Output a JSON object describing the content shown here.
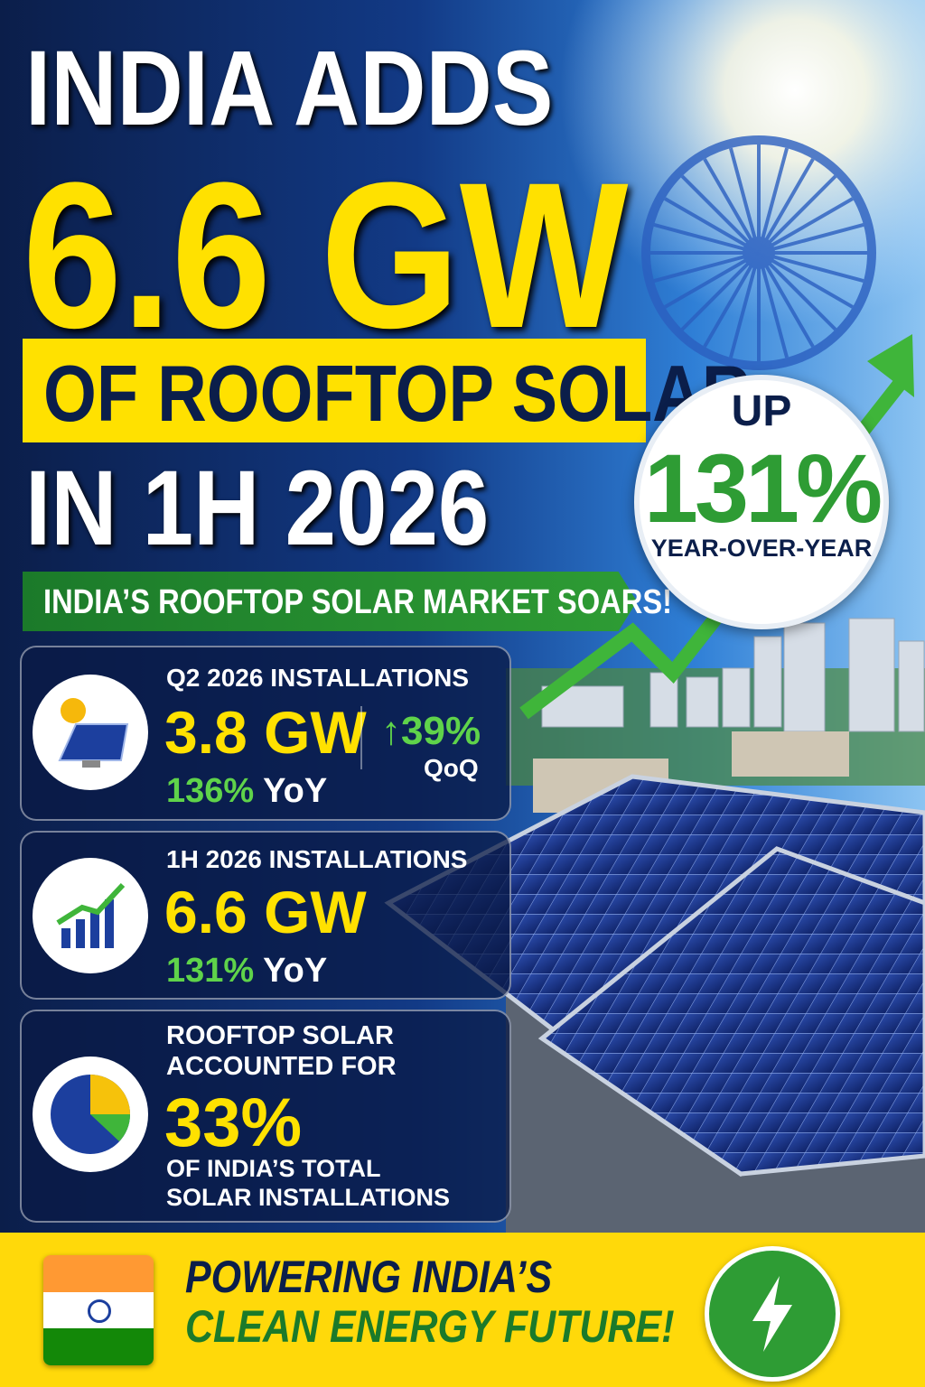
{
  "headline": {
    "line1": "INDIA ADDS",
    "line2": "6.6 GW",
    "line3": "OF ROOFTOP SOLAR",
    "line4": "IN 1H 2026"
  },
  "banner": "INDIA’S ROOFTOP SOLAR MARKET SOARS!",
  "badge": {
    "top": "UP",
    "value": "131%",
    "bottom": "YEAR-OVER-YEAR"
  },
  "cards": [
    {
      "label": "Q2 2026 INSTALLATIONS",
      "value": "3.8 GW",
      "growth": "136%",
      "growth_unit": "YoY",
      "qoq": "39%",
      "qoq_unit": "QoQ"
    },
    {
      "label": "1H 2026 INSTALLATIONS",
      "value": "6.6 GW",
      "growth": "131%",
      "growth_unit": "YoY"
    },
    {
      "label_lines": [
        "ROOFTOP SOLAR",
        "ACCOUNTED FOR"
      ],
      "value": "33%",
      "note_lines": [
        "OF INDIA’S TOTAL",
        "SOLAR INSTALLATIONS"
      ]
    }
  ],
  "footer": {
    "line1": "POWERING INDIA’S",
    "line2": "CLEAN ENERGY FUTURE!"
  }
}
